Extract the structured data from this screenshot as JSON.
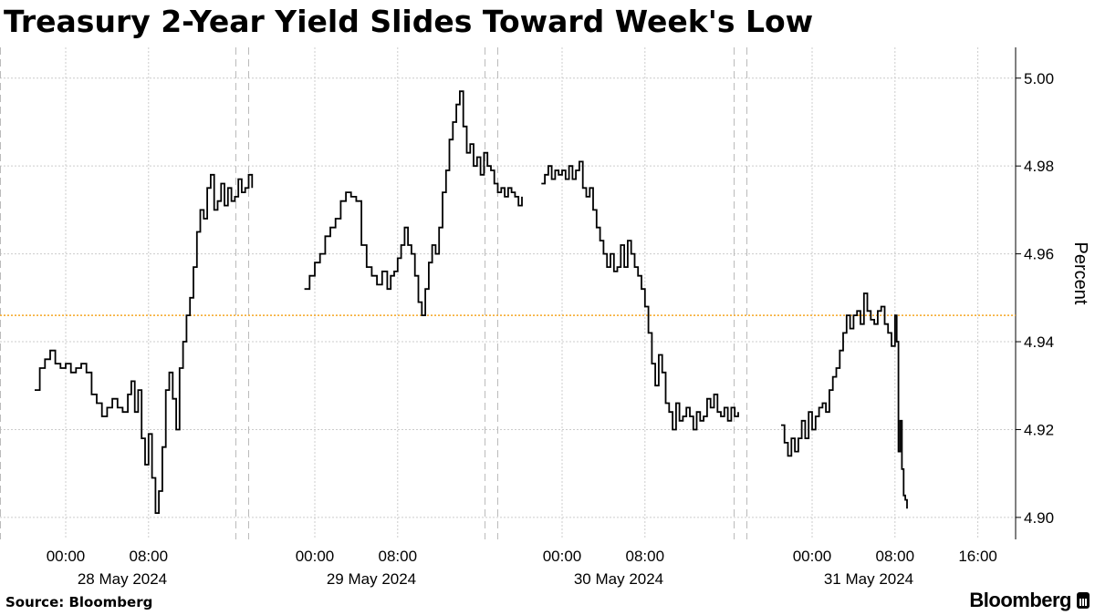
{
  "header": {
    "title": "Treasury 2-Year Yield Slides Toward Week's Low"
  },
  "footer": {
    "source": "Source: Bloomberg",
    "brand": "Bloomberg",
    "brand_icon": "bloomberg-terminal-icon"
  },
  "colors": {
    "line": "#000000",
    "reference_line": "#f5a623",
    "grid": "#cccccc",
    "session_divider": "#bbbbbb"
  },
  "chart_data": {
    "type": "line",
    "title": "Treasury 2-Year Yield Slides Toward Week's Low",
    "ylabel": "Percent",
    "ylim": [
      4.895,
      5.007
    ],
    "y_ticks": [
      "4.90",
      "4.92",
      "4.94",
      "4.96",
      "4.98",
      "5.00"
    ],
    "y_axis_side": "right",
    "grid": true,
    "reference_line": {
      "value": 4.946,
      "style": "dotted"
    },
    "x_ticks": [
      {
        "time": "00:00",
        "date": "28 May 2024"
      },
      {
        "time": "08:00",
        "date": ""
      },
      {
        "time": "00:00",
        "date": "29 May 2024"
      },
      {
        "time": "08:00",
        "date": ""
      },
      {
        "time": "00:00",
        "date": "30 May 2024"
      },
      {
        "time": "08:00",
        "date": ""
      },
      {
        "time": "00:00",
        "date": "31 May 2024"
      },
      {
        "time": "08:00",
        "date": ""
      },
      {
        "time": "16:00",
        "date": ""
      }
    ],
    "series": [
      {
        "session": "28 May 2024",
        "x": [
          "-03:00",
          "-02:30",
          "-02:00",
          "-01:30",
          "-01:00",
          "-00:30",
          "00:00",
          "00:30",
          "01:00",
          "01:30",
          "02:00",
          "02:30",
          "03:00",
          "03:30",
          "04:00",
          "04:30",
          "05:00",
          "05:30",
          "06:00",
          "06:20",
          "06:40",
          "07:00",
          "07:20",
          "07:40",
          "08:00",
          "08:20",
          "08:40",
          "09:00",
          "09:20",
          "09:40",
          "10:00",
          "10:20",
          "10:40",
          "11:00",
          "11:20",
          "11:40",
          "12:00",
          "12:20",
          "12:40",
          "13:00",
          "13:20",
          "13:40",
          "14:00",
          "14:20",
          "14:40",
          "15:00",
          "15:20",
          "15:40",
          "16:00",
          "16:20",
          "16:40",
          "17:00",
          "17:20",
          "17:40",
          "18:00"
        ],
        "y": [
          4.929,
          4.934,
          4.936,
          4.938,
          4.935,
          4.934,
          4.935,
          4.933,
          4.934,
          4.935,
          4.933,
          4.928,
          4.926,
          4.923,
          4.925,
          4.927,
          4.925,
          4.924,
          4.928,
          4.931,
          4.924,
          4.929,
          4.918,
          4.912,
          4.919,
          4.909,
          4.901,
          4.906,
          4.916,
          4.929,
          4.933,
          4.927,
          4.92,
          4.934,
          4.94,
          4.946,
          4.95,
          4.957,
          4.965,
          4.97,
          4.968,
          4.975,
          4.978,
          4.97,
          4.972,
          4.976,
          4.971,
          4.975,
          4.972,
          4.973,
          4.977,
          4.974,
          4.975,
          4.978,
          4.975
        ]
      },
      {
        "session": "29 May 2024",
        "x": [
          "-01:00",
          "-00:30",
          "00:00",
          "00:30",
          "01:00",
          "01:30",
          "02:00",
          "02:30",
          "03:00",
          "03:30",
          "04:00",
          "04:30",
          "05:00",
          "05:30",
          "06:00",
          "06:30",
          "07:00",
          "07:20",
          "07:40",
          "08:00",
          "08:20",
          "08:40",
          "09:00",
          "09:20",
          "09:40",
          "10:00",
          "10:20",
          "10:40",
          "11:00",
          "11:20",
          "11:40",
          "12:00",
          "12:20",
          "12:40",
          "13:00",
          "13:20",
          "13:40",
          "14:00",
          "14:20",
          "14:40",
          "15:00",
          "15:20",
          "15:40",
          "16:00",
          "16:20",
          "16:40",
          "17:00",
          "17:20",
          "17:40",
          "18:00",
          "18:20",
          "18:40",
          "19:00",
          "19:20",
          "19:40",
          "20:00"
        ],
        "y": [
          4.952,
          4.955,
          4.958,
          4.96,
          4.964,
          4.966,
          4.968,
          4.972,
          4.974,
          4.973,
          4.972,
          4.962,
          4.957,
          4.955,
          4.953,
          4.956,
          4.952,
          4.955,
          4.956,
          4.959,
          4.962,
          4.966,
          4.962,
          4.96,
          4.955,
          4.949,
          4.946,
          4.952,
          4.958,
          4.962,
          4.96,
          4.966,
          4.974,
          4.979,
          4.986,
          4.99,
          4.994,
          4.997,
          4.989,
          4.983,
          4.985,
          4.98,
          4.982,
          4.978,
          4.983,
          4.98,
          4.979,
          4.976,
          4.974,
          4.975,
          4.973,
          4.975,
          4.974,
          4.973,
          4.971,
          4.973
        ]
      },
      {
        "session": "30 May 2024",
        "x": [
          "-02:00",
          "-01:40",
          "-01:20",
          "-01:00",
          "-00:40",
          "-00:20",
          "00:00",
          "00:20",
          "00:40",
          "01:00",
          "01:20",
          "01:40",
          "02:00",
          "02:20",
          "02:40",
          "03:00",
          "03:20",
          "03:40",
          "04:00",
          "04:20",
          "04:40",
          "05:00",
          "05:20",
          "05:40",
          "06:00",
          "06:20",
          "06:40",
          "07:00",
          "07:20",
          "07:40",
          "08:00",
          "08:20",
          "08:40",
          "09:00",
          "09:20",
          "09:40",
          "10:00",
          "10:20",
          "10:40",
          "11:00",
          "11:20",
          "11:40",
          "12:00",
          "12:20",
          "12:40",
          "13:00",
          "13:20",
          "13:40",
          "14:00",
          "14:20",
          "14:40",
          "15:00",
          "15:20",
          "15:40",
          "16:00",
          "16:20",
          "16:40",
          "17:00"
        ],
        "y": [
          4.976,
          4.978,
          4.98,
          4.977,
          4.979,
          4.978,
          4.979,
          4.977,
          4.98,
          4.977,
          4.979,
          4.981,
          4.975,
          4.973,
          4.975,
          4.97,
          4.966,
          4.963,
          4.96,
          4.957,
          4.96,
          4.956,
          4.957,
          4.962,
          4.957,
          4.963,
          4.96,
          4.957,
          4.955,
          4.952,
          4.948,
          4.942,
          4.935,
          4.93,
          4.937,
          4.933,
          4.926,
          4.924,
          4.92,
          4.926,
          4.922,
          4.923,
          4.925,
          4.923,
          4.92,
          4.924,
          4.922,
          4.923,
          4.927,
          4.925,
          4.928,
          4.924,
          4.923,
          4.925,
          4.922,
          4.925,
          4.923,
          4.924
        ]
      },
      {
        "session": "31 May 2024",
        "x": [
          "-03:00",
          "-02:40",
          "-02:20",
          "-02:00",
          "-01:40",
          "-01:20",
          "-01:00",
          "-00:40",
          "-00:20",
          "00:00",
          "00:20",
          "00:40",
          "01:00",
          "01:20",
          "01:40",
          "02:00",
          "02:20",
          "02:40",
          "03:00",
          "03:20",
          "03:40",
          "04:00",
          "04:20",
          "04:40",
          "05:00",
          "05:20",
          "05:40",
          "06:00",
          "06:20",
          "06:40",
          "07:00",
          "07:20",
          "07:40",
          "08:00",
          "08:10",
          "08:20",
          "08:30",
          "08:40",
          "08:50",
          "09:00",
          "09:10"
        ],
        "y": [
          4.921,
          4.917,
          4.914,
          4.918,
          4.915,
          4.918,
          4.922,
          4.918,
          4.924,
          4.92,
          4.923,
          4.925,
          4.926,
          4.924,
          4.929,
          4.932,
          4.934,
          4.938,
          4.942,
          4.946,
          4.943,
          4.946,
          4.947,
          4.944,
          4.951,
          4.947,
          4.945,
          4.944,
          4.947,
          4.948,
          4.944,
          4.942,
          4.939,
          4.946,
          4.94,
          4.915,
          4.922,
          4.911,
          4.905,
          4.904,
          4.902
        ]
      }
    ]
  }
}
